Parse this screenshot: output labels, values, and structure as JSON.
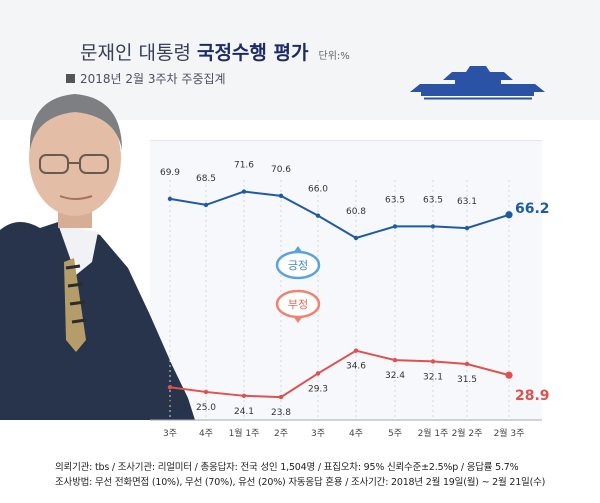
{
  "header": {
    "title_light": "문재인 대통령",
    "title_bold": "국정수행 평가",
    "unit": "단위:%",
    "subtitle": "2018년 2월 3주차 주중집계"
  },
  "footer": {
    "line1": "의뢰기관: tbs / 조사기관: 리얼미터 / 총응답자: 전국 성인 1,504명 / 표집오차: 95% 신뢰수준±2.5%p / 응답률 5.7%",
    "line2": "조사방법: 무선 전화면접 (10%), 무선 (70%), 유선 (20%) 자동응답 혼용 / 조사기간: 2018년 2월 19일(월) ~ 2월 21일(수)"
  },
  "colors": {
    "positive": "#1d5ca3",
    "negative": "#e0514e",
    "positive_bubble": "#5aa3de",
    "negative_bubble": "#ef8270",
    "blue_house": "#2a53a6"
  },
  "chart_data": {
    "type": "line",
    "categories": [
      "3주",
      "4주",
      "1월 1주",
      "2주",
      "3주",
      "4주",
      "5주",
      "2월 1주",
      "2월 2주",
      "2월 3주"
    ],
    "series": [
      {
        "name": "긍정",
        "values": [
          69.9,
          68.5,
          71.6,
          70.6,
          66.0,
          60.8,
          63.5,
          63.5,
          63.1,
          66.2
        ]
      },
      {
        "name": "부정",
        "values": [
          26.1,
          25.0,
          24.1,
          23.8,
          29.3,
          34.6,
          32.4,
          32.1,
          31.5,
          28.9
        ]
      }
    ],
    "title": "문재인 대통령 국정수행 평가",
    "xlabel": "",
    "ylabel": "",
    "grid": true,
    "legend": "inline bubbles"
  }
}
